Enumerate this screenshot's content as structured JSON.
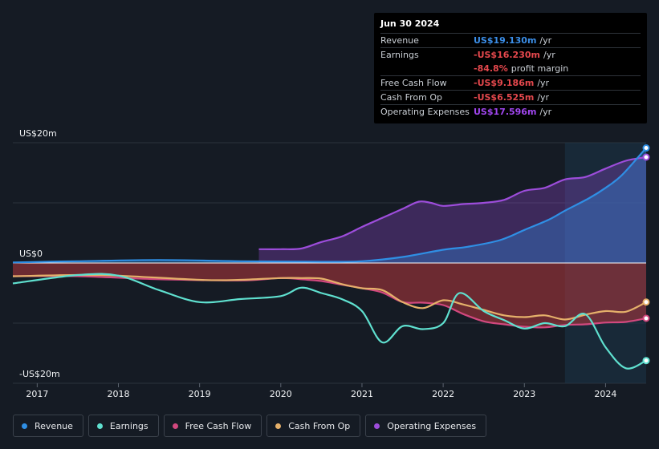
{
  "tooltip": {
    "date": "Jun 30 2024",
    "rows": [
      {
        "label": "Revenue",
        "value": "US$19.130m",
        "unit": "/yr",
        "color": "#3b8ee8"
      },
      {
        "label": "Earnings",
        "value": "-US$16.230m",
        "unit": "/yr",
        "color": "#e5484d"
      },
      {
        "label": "",
        "value": "-84.8%",
        "unit": "profit margin",
        "color": "#e5484d"
      },
      {
        "label": "Free Cash Flow",
        "value": "-US$9.186m",
        "unit": "/yr",
        "color": "#e5484d"
      },
      {
        "label": "Cash From Op",
        "value": "-US$6.525m",
        "unit": "/yr",
        "color": "#e5484d"
      },
      {
        "label": "Operating Expenses",
        "value": "US$17.596m",
        "unit": "/yr",
        "color": "#a146ef"
      }
    ]
  },
  "legend": [
    {
      "label": "Revenue",
      "color": "#2f8fe5"
    },
    {
      "label": "Earnings",
      "color": "#5fe0cf"
    },
    {
      "label": "Free Cash Flow",
      "color": "#d1487e"
    },
    {
      "label": "Cash From Op",
      "color": "#e5b06a"
    },
    {
      "label": "Operating Expenses",
      "color": "#9d4ddb"
    }
  ],
  "chart_data": {
    "type": "line",
    "title": "",
    "unit": "US$ millions",
    "y_top_label": "US$20m",
    "y_zero_label": "US$0",
    "y_bottom_label": "-US$20m",
    "ylim": [
      -20,
      20
    ],
    "xlim": [
      2016.7,
      2024.5
    ],
    "x_ticks": [
      2017,
      2018,
      2019,
      2020,
      2021,
      2022,
      2023,
      2024
    ],
    "x_tick_labels": [
      "2017",
      "2018",
      "2019",
      "2020",
      "2021",
      "2022",
      "2023",
      "2024"
    ],
    "highlight_start": 2023.5,
    "series": [
      {
        "name": "Revenue",
        "color": "#2f8fe5",
        "fill": true,
        "x": [
          2016.7,
          2017.5,
          2018.5,
          2019.5,
          2020.5,
          2021.0,
          2021.5,
          2022.0,
          2022.3,
          2022.7,
          2023.0,
          2023.3,
          2023.5,
          2023.8,
          2024.0,
          2024.2,
          2024.5
        ],
        "y": [
          0.1,
          0.3,
          0.5,
          0.3,
          0.2,
          0.3,
          1.0,
          2.2,
          2.7,
          3.8,
          5.5,
          7.2,
          8.7,
          10.8,
          12.5,
          14.6,
          19.13
        ]
      },
      {
        "name": "Operating Expenses",
        "color": "#9d4ddb",
        "fill": true,
        "x": [
          2019.73,
          2020.0,
          2020.25,
          2020.5,
          2020.75,
          2021.0,
          2021.25,
          2021.5,
          2021.7,
          2021.85,
          2022.0,
          2022.25,
          2022.5,
          2022.75,
          2023.0,
          2023.25,
          2023.5,
          2023.75,
          2024.0,
          2024.25,
          2024.5
        ],
        "y": [
          2.3,
          2.3,
          2.4,
          3.5,
          4.4,
          6.0,
          7.5,
          9.0,
          10.2,
          10.0,
          9.5,
          9.8,
          10.0,
          10.5,
          12.0,
          12.5,
          13.9,
          14.3,
          15.7,
          17.0,
          17.6
        ]
      },
      {
        "name": "Free Cash Flow",
        "color": "#d1487e",
        "fill": false,
        "x": [
          2016.7,
          2017.5,
          2018.5,
          2019.5,
          2020.0,
          2020.25,
          2020.5,
          2020.75,
          2021.0,
          2021.25,
          2021.5,
          2021.75,
          2022.0,
          2022.25,
          2022.5,
          2022.75,
          2023.0,
          2023.25,
          2023.5,
          2023.75,
          2024.0,
          2024.25,
          2024.5
        ],
        "y": [
          -2.2,
          -2.2,
          -2.7,
          -2.9,
          -2.5,
          -2.7,
          -3.0,
          -3.6,
          -4.2,
          -4.9,
          -6.5,
          -6.6,
          -7.0,
          -8.5,
          -9.7,
          -10.2,
          -10.6,
          -10.7,
          -10.3,
          -10.2,
          -9.9,
          -9.8,
          -9.2
        ]
      },
      {
        "name": "Cash From Op",
        "color": "#e5b06a",
        "fill": false,
        "x": [
          2016.7,
          2017.5,
          2018.0,
          2019.0,
          2019.5,
          2020.0,
          2020.25,
          2020.5,
          2020.75,
          2021.0,
          2021.25,
          2021.5,
          2021.75,
          2022.0,
          2022.25,
          2022.5,
          2022.75,
          2023.0,
          2023.25,
          2023.5,
          2023.75,
          2024.0,
          2024.25,
          2024.5
        ],
        "y": [
          -2.2,
          -2.0,
          -2.1,
          -2.8,
          -2.8,
          -2.5,
          -2.5,
          -2.6,
          -3.5,
          -4.2,
          -4.5,
          -6.5,
          -7.5,
          -6.2,
          -6.9,
          -7.8,
          -8.7,
          -9.0,
          -8.7,
          -9.4,
          -8.6,
          -8.0,
          -8.1,
          -6.5
        ]
      },
      {
        "name": "Earnings",
        "color": "#5fe0cf",
        "fill": false,
        "x": [
          2016.7,
          2017.5,
          2018.0,
          2018.5,
          2019.0,
          2019.5,
          2020.0,
          2020.25,
          2020.5,
          2020.75,
          2021.0,
          2021.25,
          2021.5,
          2021.75,
          2022.0,
          2022.2,
          2022.5,
          2022.75,
          2023.0,
          2023.25,
          2023.5,
          2023.75,
          2024.0,
          2024.25,
          2024.5
        ],
        "y": [
          -3.4,
          -2.0,
          -2.1,
          -4.5,
          -6.5,
          -6.0,
          -5.5,
          -4.1,
          -5.0,
          -6.0,
          -8.0,
          -13.2,
          -10.5,
          -11.0,
          -10.0,
          -5.0,
          -8.0,
          -9.5,
          -10.9,
          -10.0,
          -10.5,
          -8.5,
          -14.0,
          -17.5,
          -16.23
        ]
      }
    ]
  }
}
